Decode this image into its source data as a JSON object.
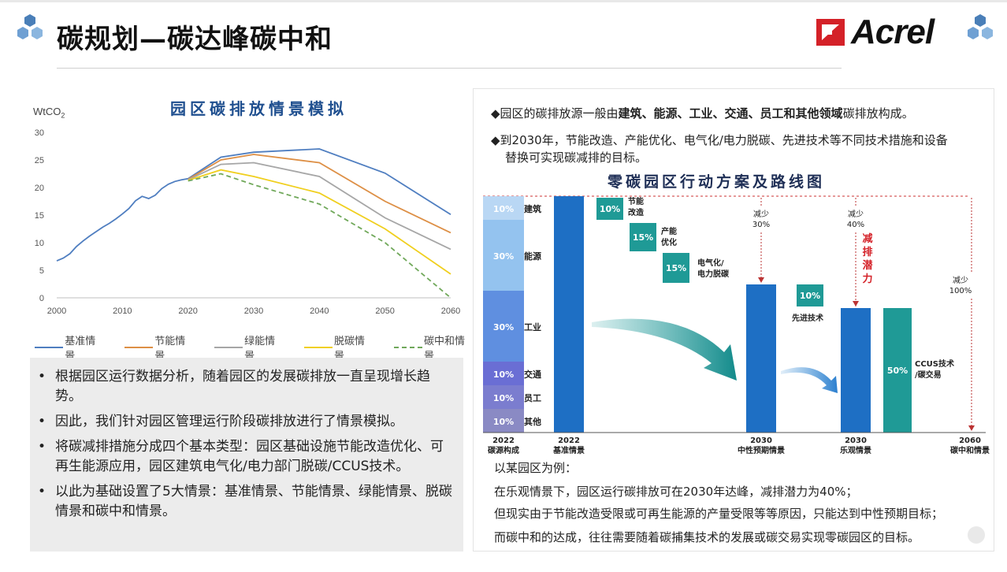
{
  "slide": {
    "title": "碳规划—碳达峰碳中和",
    "logo_text": "Acrel"
  },
  "left_chart": {
    "title": "园区碳排放情景模拟",
    "y_unit": "WtCO",
    "y_unit_sub": "2"
  },
  "chart_data": {
    "type": "line",
    "title": "园区碳排放情景模拟",
    "ylabel": "WtCO2",
    "xlim": [
      2000,
      2060
    ],
    "ylim": [
      0,
      30
    ],
    "x_ticks": [
      "2000",
      "2010",
      "2020",
      "2030",
      "2040",
      "2050",
      "2060"
    ],
    "y_ticks": [
      "0",
      "5",
      "10",
      "15",
      "20",
      "25",
      "30"
    ],
    "legend": "bottom",
    "grid": false,
    "series": [
      {
        "name": "基准情景",
        "color": "#4f7ec0",
        "dashed": false,
        "x": [
          2000,
          2001,
          2002,
          2003,
          2004,
          2005,
          2006,
          2007,
          2008,
          2009,
          2010,
          2011,
          2012,
          2013,
          2014,
          2015,
          2016,
          2017,
          2018,
          2019,
          2020,
          2025,
          2030,
          2040,
          2050,
          2060
        ],
        "y": [
          6.7,
          7.2,
          8.0,
          9.3,
          10.3,
          11.2,
          12.0,
          12.8,
          13.5,
          14.3,
          15.2,
          16.2,
          17.6,
          18.4,
          18.0,
          18.6,
          19.8,
          20.6,
          21.1,
          21.4,
          21.6,
          25.5,
          26.4,
          27.0,
          22.6,
          15.1
        ]
      },
      {
        "name": "节能情景",
        "color": "#dd8f45",
        "dashed": false,
        "x": [
          2020,
          2025,
          2030,
          2040,
          2050,
          2060
        ],
        "y": [
          21.5,
          25.0,
          26.0,
          24.5,
          17.5,
          11.8
        ]
      },
      {
        "name": "绿能情景",
        "color": "#a6a6a6",
        "dashed": false,
        "x": [
          2020,
          2025,
          2030,
          2040,
          2050,
          2060
        ],
        "y": [
          21.4,
          24.2,
          24.5,
          22.0,
          14.5,
          8.8
        ]
      },
      {
        "name": "脱碳情景",
        "color": "#f0cf1e",
        "dashed": false,
        "x": [
          2020,
          2025,
          2030,
          2040,
          2050,
          2060
        ],
        "y": [
          21.3,
          23.2,
          22.0,
          19.0,
          12.5,
          4.3
        ]
      },
      {
        "name": "碳中和情景",
        "color": "#70a85a",
        "dashed": true,
        "x": [
          2020,
          2025,
          2030,
          2040,
          2050,
          2060
        ],
        "y": [
          21.2,
          22.5,
          20.5,
          17.0,
          10.0,
          0.0
        ]
      }
    ]
  },
  "legend_items": [
    {
      "label": "基准情景",
      "color": "#4f7ec0",
      "dashed": false
    },
    {
      "label": "节能情景",
      "color": "#dd8f45",
      "dashed": false
    },
    {
      "label": "绿能情景",
      "color": "#a6a6a6",
      "dashed": false
    },
    {
      "label": "脱碳情景",
      "color": "#f0cf1e",
      "dashed": false
    },
    {
      "label": "碳中和情景",
      "color": "#70a85a",
      "dashed": true
    }
  ],
  "bullets": [
    "根据园区运行数据分析，随着园区的发展碳排放一直呈现增长趋势。",
    "因此，我们针对园区管理运行阶段碳排放进行了情景模拟。",
    "将碳减排措施分成四个基本类型：园区基础设施节能改造优化、可再生能源应用，园区建筑电气化/电力部门脱碳/CCUS技术。",
    "以此为基础设置了5大情景：基准情景、节能情景、绿能情景、脱碳情景和碳中和情景。"
  ],
  "right_panel": {
    "line1_prefix": "◆园区的碳排放源一般由",
    "line1_bold": "建筑、能源、工业、交通、员工和其他领域",
    "line1_suffix": "碳排放构成。",
    "line2a": "◆到2030年，节能改造、产能优化、电气化/电力脱碳、先进技术等不同技术措施和设备",
    "line2b": "替换可实现碳减排的目标。",
    "roadmap_title": "零碳园区行动方案及路线图",
    "example_lines": [
      "以某园区为例：",
      "在乐观情景下，园区运行碳排放可在2030年达峰，减排潜力为40%；",
      "但现实由于节能改造受限或可再生能源的产量受限等等原因，只能达到中性预期目标；",
      "而碳中和的达成，往往需要随着碳捕集技术的发展或碳交易实现零碳园区的目标。"
    ]
  },
  "roadmap": {
    "sources": [
      {
        "pct": "10%",
        "label": "建筑",
        "color": "#b9d7f4"
      },
      {
        "pct": "30%",
        "label": "能源",
        "color": "#94c3ef"
      },
      {
        "pct": "30%",
        "label": "工业",
        "color": "#5f8fe0"
      },
      {
        "pct": "10%",
        "label": "交通",
        "color": "#6a6ed4"
      },
      {
        "pct": "10%",
        "label": "员工",
        "color": "#7b7dcf"
      },
      {
        "pct": "10%",
        "label": "其他",
        "color": "#8a8ac4"
      }
    ],
    "steps": [
      {
        "pct": "10%",
        "label1": "节能",
        "label2": "改造"
      },
      {
        "pct": "15%",
        "label1": "产能",
        "label2": "优化"
      },
      {
        "pct": "15%",
        "label1": "电气化/",
        "label2": "电力脱碳"
      },
      {
        "pct": "10%",
        "label1": "先进技术",
        "label2": ""
      },
      {
        "pct": "50%",
        "label1": "CCUS技术",
        "label2": "/碳交易"
      }
    ],
    "reductions": [
      {
        "l1": "减少",
        "l2": "30%"
      },
      {
        "l1": "减少",
        "l2": "40%"
      },
      {
        "l1": "减少",
        "l2": "100%"
      }
    ],
    "potential": [
      "减",
      "排",
      "潜",
      "力"
    ],
    "x_labels": [
      {
        "year": "2022",
        "name": "碳源构成"
      },
      {
        "year": "2022",
        "name": "基准情景"
      },
      {
        "year": "2030",
        "name": "中性预期情景"
      },
      {
        "year": "2030",
        "name": "乐观情景"
      },
      {
        "year": "2060",
        "name": "碳中和情景"
      }
    ]
  }
}
